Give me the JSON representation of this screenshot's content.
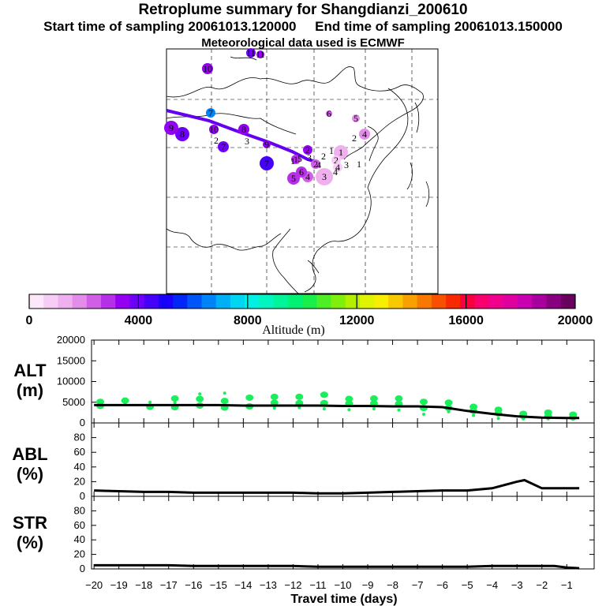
{
  "titles": {
    "line1": "Retroplume summary for Shangdianzi_200610",
    "line2": "Start time of sampling 20061013.120000     End time of sampling 20061013.150000",
    "line3": "Meteorological data used is ECMWF"
  },
  "colorbar": {
    "label": "Altitude (m)",
    "tick_labels": [
      "0",
      "4000",
      "8000",
      "12000",
      "16000",
      "20000"
    ],
    "colors": [
      "#fde8fb",
      "#f8cdf5",
      "#f0b0ef",
      "#e48ce9",
      "#d05fe5",
      "#b530e6",
      "#9400f2",
      "#6e00f8",
      "#4400f8",
      "#1900f8",
      "#0026f8",
      "#0055f8",
      "#0083f8",
      "#00b0f6",
      "#00d6f4",
      "#00f0e4",
      "#00f5c0",
      "#00f59a",
      "#00f273",
      "#19ef4a",
      "#4dee26",
      "#7ff00c",
      "#b3f000",
      "#dff400",
      "#f8ee00",
      "#f8c800",
      "#f8a000",
      "#f87800",
      "#f85000",
      "#f82800",
      "#f80040",
      "#f8006e",
      "#f0008c",
      "#e000a0",
      "#c800b0",
      "#a8009c",
      "#880080",
      "#680060"
    ]
  },
  "map": {
    "markers": [
      {
        "label": "1",
        "altitude": 1200,
        "r": 9
      },
      {
        "label": "2",
        "altitude": 900,
        "r": 6
      },
      {
        "label": "3",
        "altitude": 900,
        "r": 10
      },
      {
        "label": "4",
        "altitude": 800,
        "r": 6
      },
      {
        "label": "5",
        "altitude": 2000,
        "r": 5
      },
      {
        "label": "6",
        "altitude": 2500,
        "r": 4
      },
      {
        "label": "4",
        "altitude": 1800,
        "r": 7
      },
      {
        "label": "2",
        "altitude": 2500,
        "r": 6
      },
      {
        "label": "3",
        "altitude": 1200,
        "r": 11
      },
      {
        "label": "4",
        "altitude": 2600,
        "r": 7
      },
      {
        "label": "5",
        "altitude": 2700,
        "r": 8
      },
      {
        "label": "6",
        "altitude": 3000,
        "r": 7
      },
      {
        "label": "1",
        "altitude": 2800,
        "r": 6
      },
      {
        "label": "2",
        "altitude": 3200,
        "r": 6
      },
      {
        "label": "7",
        "altitude": 4100,
        "r": 7
      },
      {
        "label": "8",
        "altitude": 3500,
        "r": 7
      },
      {
        "label": "9",
        "altitude": 3300,
        "r": 5
      },
      {
        "label": "7",
        "altitude": 4300,
        "r": 9
      },
      {
        "label": "8",
        "altitude": 3700,
        "r": 9
      },
      {
        "label": "9",
        "altitude": 3400,
        "r": 9
      },
      {
        "label": "10",
        "altitude": 3600,
        "r": 7
      },
      {
        "label": "7",
        "altitude": 6500,
        "r": 6
      },
      {
        "label": "10",
        "altitude": 3600,
        "r": 6
      },
      {
        "label": "11",
        "altitude": 3800,
        "r": 6
      },
      {
        "label": "11",
        "altitude": 3400,
        "r": 5
      }
    ],
    "day_labels": [
      "1",
      "2",
      "3",
      "4",
      "1",
      "2",
      "3",
      "4",
      "5",
      "1",
      "2",
      "3"
    ]
  },
  "chart_data": [
    {
      "type": "line",
      "title": "ALT (m)",
      "xlabel": "Travel time (days)",
      "ylabel": "ALT (m)",
      "xlim": [
        -20.1,
        0.1
      ],
      "ylim": [
        0,
        20000
      ],
      "yticks": [
        0,
        5000,
        10000,
        15000,
        20000
      ],
      "x": [
        -20,
        -19,
        -18,
        -17,
        -16,
        -15,
        -14,
        -13,
        -12,
        -11,
        -10,
        -9,
        -8,
        -7,
        -6,
        -5,
        -4,
        -3,
        -2,
        -1,
        -0.5
      ],
      "series": [
        {
          "name": "Mean plume altitude",
          "color": "#000000",
          "values": [
            4300,
            4300,
            4300,
            4300,
            4300,
            4300,
            4200,
            4200,
            4200,
            4200,
            4100,
            4100,
            4000,
            4000,
            3800,
            2900,
            2200,
            1600,
            1300,
            1200,
            1200
          ]
        }
      ],
      "clusters": {
        "color": "#19ef5a",
        "points": [
          {
            "x": -19.75,
            "y": 4100
          },
          {
            "x": -19.75,
            "y": 5100
          },
          {
            "x": -18.75,
            "y": 4600
          },
          {
            "x": -18.75,
            "y": 5400
          },
          {
            "x": -17.75,
            "y": 3900
          },
          {
            "x": -17.75,
            "y": 5000
          },
          {
            "x": -16.75,
            "y": 3800
          },
          {
            "x": -16.75,
            "y": 5900
          },
          {
            "x": -16.75,
            "y": 4900
          },
          {
            "x": -15.75,
            "y": 4200
          },
          {
            "x": -15.75,
            "y": 5800
          },
          {
            "x": -15.75,
            "y": 7000
          },
          {
            "x": -14.75,
            "y": 3700
          },
          {
            "x": -14.75,
            "y": 5300
          },
          {
            "x": -14.75,
            "y": 7200
          },
          {
            "x": -13.75,
            "y": 4000
          },
          {
            "x": -13.75,
            "y": 6100
          },
          {
            "x": -12.75,
            "y": 3600
          },
          {
            "x": -12.75,
            "y": 4900
          },
          {
            "x": -12.75,
            "y": 6300
          },
          {
            "x": -11.75,
            "y": 3700
          },
          {
            "x": -11.75,
            "y": 4800
          },
          {
            "x": -11.75,
            "y": 6300
          },
          {
            "x": -10.75,
            "y": 3400
          },
          {
            "x": -10.75,
            "y": 4800
          },
          {
            "x": -10.75,
            "y": 6800
          },
          {
            "x": -9.75,
            "y": 3200
          },
          {
            "x": -9.75,
            "y": 4700
          },
          {
            "x": -9.75,
            "y": 5800
          },
          {
            "x": -8.75,
            "y": 3400
          },
          {
            "x": -8.75,
            "y": 4700
          },
          {
            "x": -8.75,
            "y": 5900
          },
          {
            "x": -7.75,
            "y": 3100
          },
          {
            "x": -7.75,
            "y": 4600
          },
          {
            "x": -7.75,
            "y": 5900
          },
          {
            "x": -6.75,
            "y": 2100
          },
          {
            "x": -6.75,
            "y": 3600
          },
          {
            "x": -6.75,
            "y": 5100
          },
          {
            "x": -5.75,
            "y": 2700
          },
          {
            "x": -5.75,
            "y": 3600
          },
          {
            "x": -5.75,
            "y": 4900
          },
          {
            "x": -4.75,
            "y": 1800
          },
          {
            "x": -4.75,
            "y": 2900
          },
          {
            "x": -4.75,
            "y": 3900
          },
          {
            "x": -3.75,
            "y": 1100
          },
          {
            "x": -3.75,
            "y": 2300
          },
          {
            "x": -3.75,
            "y": 3200
          },
          {
            "x": -2.75,
            "y": 1000
          },
          {
            "x": -2.75,
            "y": 1700
          },
          {
            "x": -2.75,
            "y": 2200
          },
          {
            "x": -1.75,
            "y": 1000
          },
          {
            "x": -1.75,
            "y": 1600
          },
          {
            "x": -1.75,
            "y": 2500
          },
          {
            "x": -0.75,
            "y": 900
          },
          {
            "x": -0.75,
            "y": 1400
          },
          {
            "x": -0.75,
            "y": 2000
          }
        ]
      }
    },
    {
      "type": "line",
      "title": "ABL (%)",
      "ylabel": "ABL (%)",
      "xlim": [
        -20.1,
        0.1
      ],
      "ylim": [
        0,
        100
      ],
      "yticks": [
        0,
        20,
        40,
        60,
        80
      ],
      "x": [
        -20,
        -19,
        -18,
        -17,
        -16,
        -15,
        -14,
        -13,
        -12,
        -11,
        -10,
        -9,
        -8,
        -7,
        -6,
        -5,
        -4,
        -3,
        -2.7,
        -2,
        -1,
        -0.5
      ],
      "series": [
        {
          "name": "ABL fraction",
          "color": "#000000",
          "values": [
            8,
            7,
            6,
            6,
            5,
            5,
            5,
            5,
            5,
            4,
            4,
            5,
            6,
            7,
            8,
            8,
            11,
            20,
            22,
            11,
            11,
            11
          ]
        }
      ]
    },
    {
      "type": "line",
      "title": "STR (%)",
      "ylabel": "STR (%)",
      "xlim": [
        -20.1,
        0.1
      ],
      "ylim": [
        0,
        100
      ],
      "yticks": [
        0,
        20,
        40,
        60,
        80
      ],
      "xticks": [
        -20,
        -19,
        -18,
        -17,
        -16,
        -15,
        -14,
        -13,
        -12,
        -11,
        -10,
        -9,
        -8,
        -7,
        -6,
        -5,
        -4,
        -3,
        -2,
        -1
      ],
      "x": [
        -20,
        -19,
        -18,
        -17,
        -16,
        -15,
        -14,
        -13,
        -12,
        -11,
        -10,
        -9,
        -8,
        -7,
        -6,
        -5,
        -4,
        -3,
        -2,
        -1.5,
        -1,
        -0.5
      ],
      "series": [
        {
          "name": "Stratospheric fraction",
          "color": "#000000",
          "values": [
            5,
            5,
            5,
            5,
            4,
            4,
            4,
            4,
            4,
            3,
            3,
            3,
            3,
            3,
            3,
            3,
            4,
            4,
            4,
            4,
            2,
            1
          ]
        }
      ]
    }
  ],
  "panel_labels": {
    "alt_line1": "ALT",
    "alt_line2": "(m)",
    "abl_line1": "ABL",
    "abl_line2": "(%)",
    "str_line1": "STR",
    "str_line2": "(%)"
  }
}
